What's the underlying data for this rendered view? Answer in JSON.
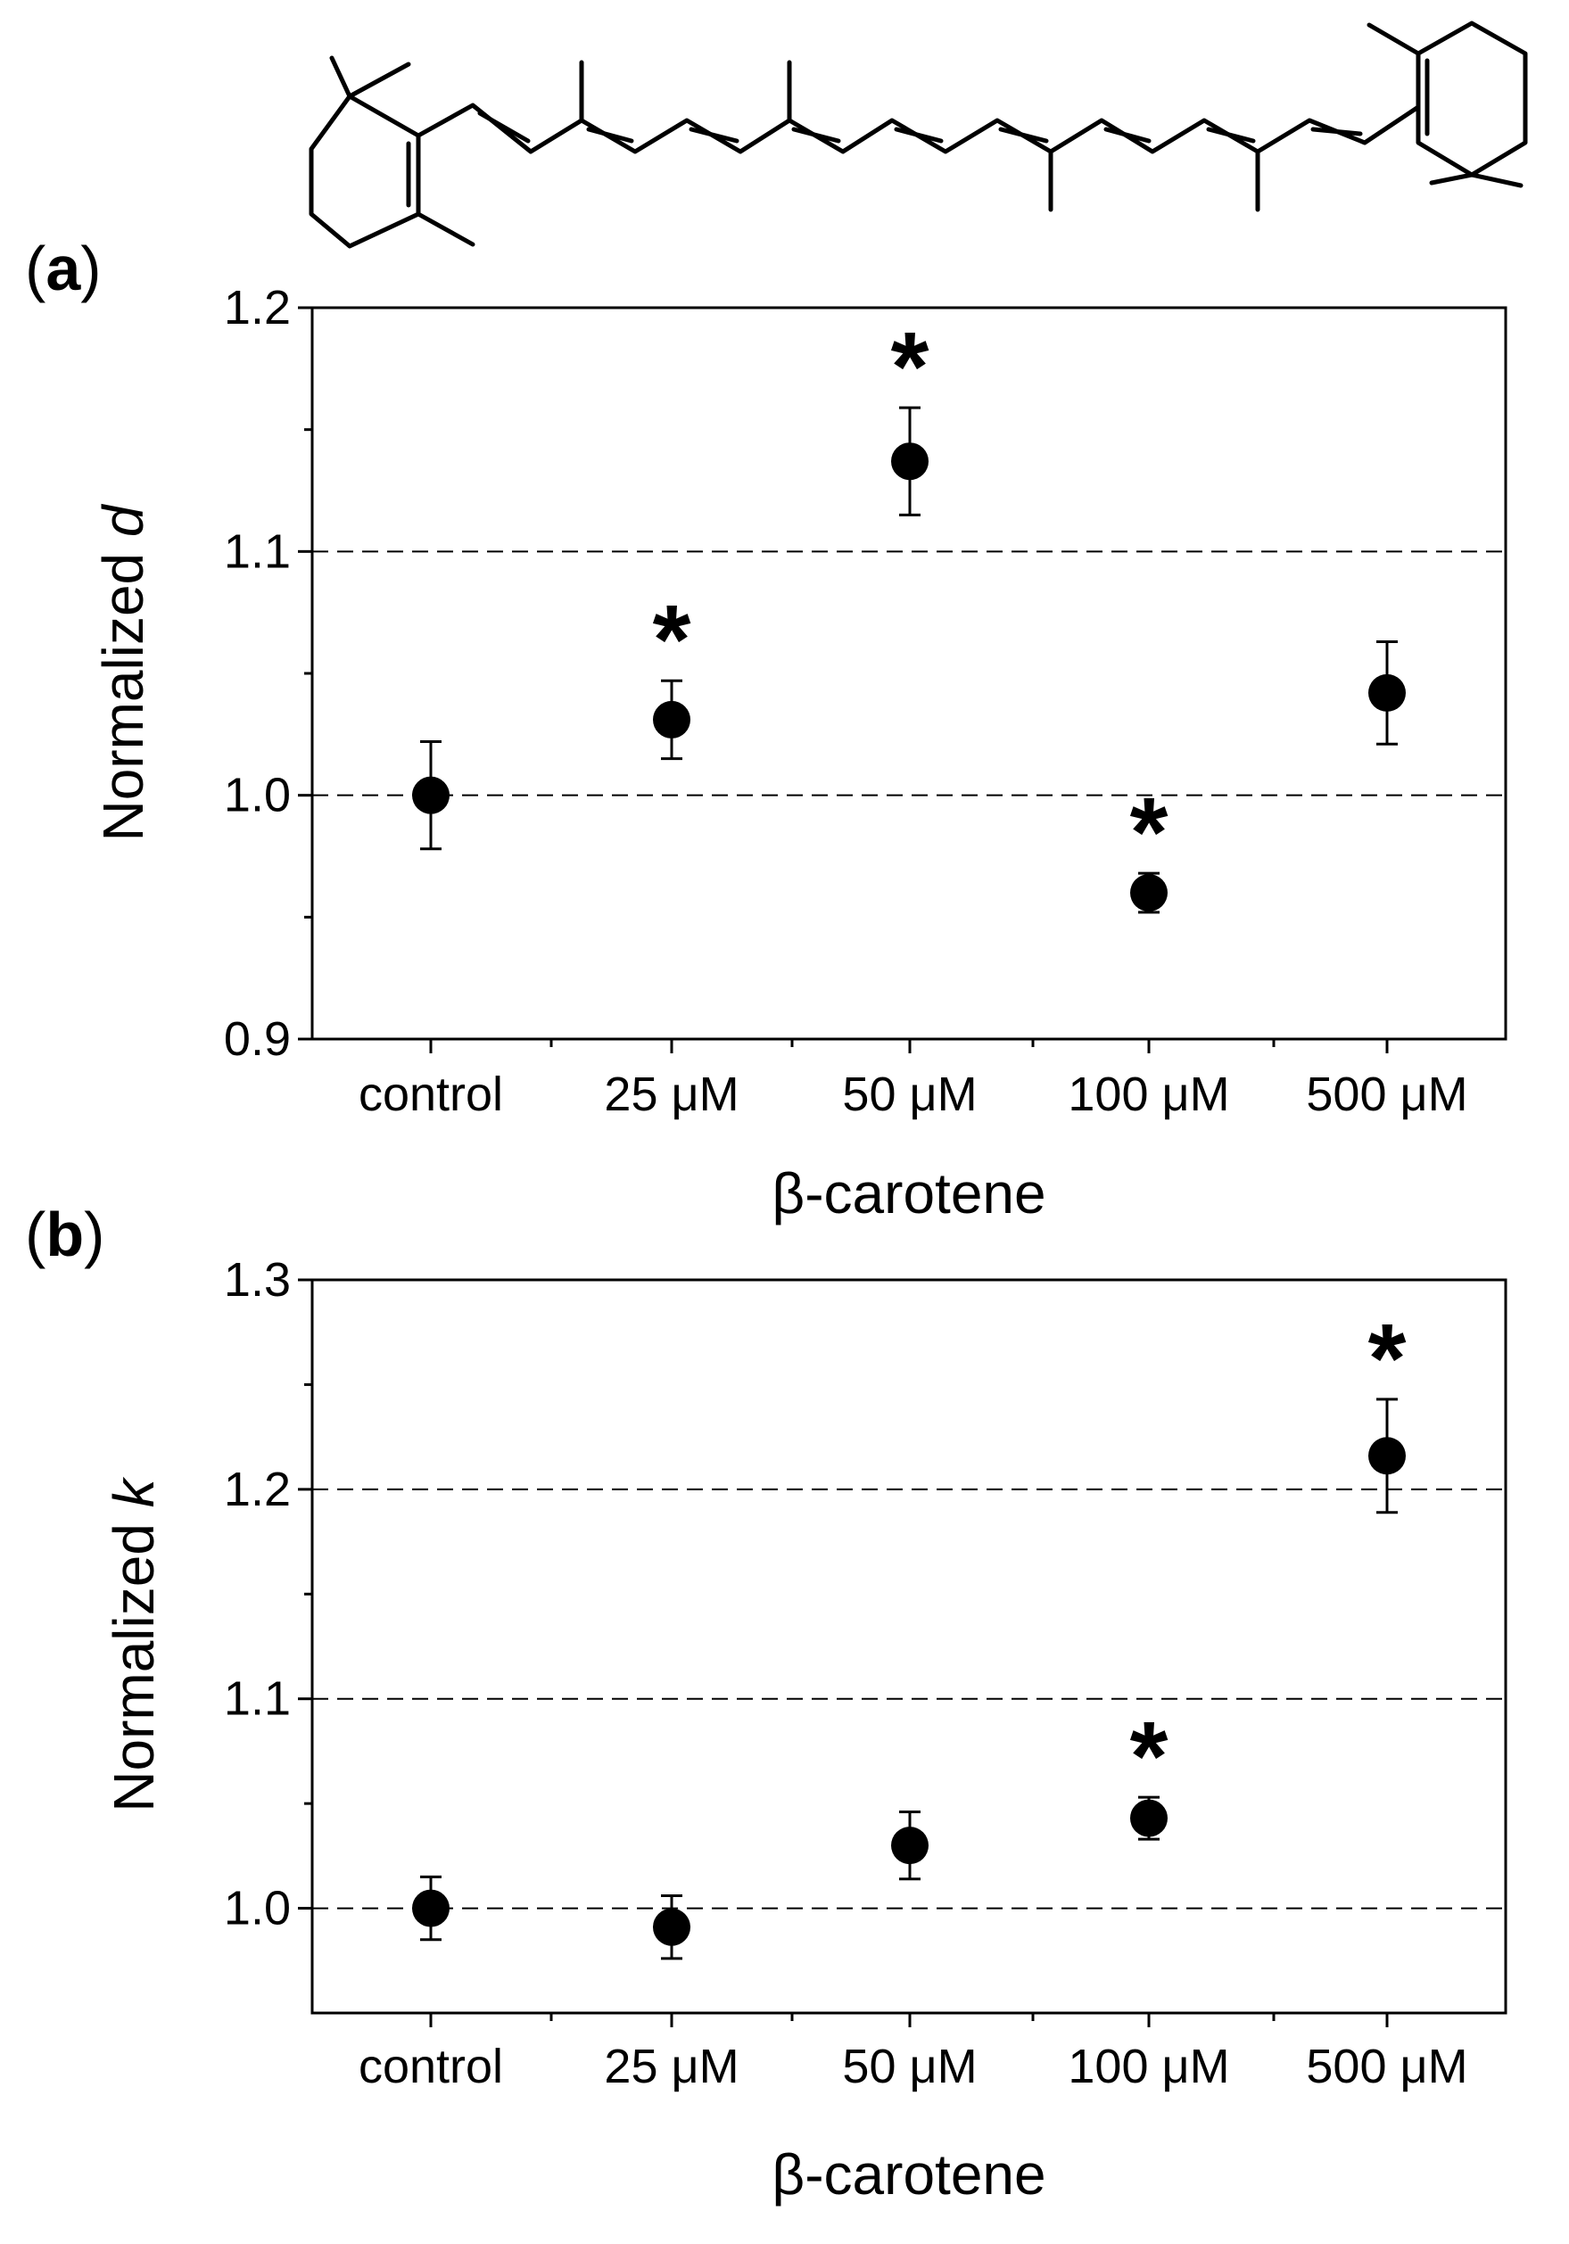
{
  "figure": {
    "molecule_name": "β-carotene",
    "panels": [
      {
        "letter": "a",
        "paren_open": "(",
        "paren_close": ")"
      },
      {
        "letter": "b",
        "paren_open": "(",
        "paren_close": ")"
      }
    ]
  },
  "chart_data": [
    {
      "type": "scatter",
      "panel": "a",
      "title": "",
      "xlabel": "β-carotene",
      "ylabel_prefix": "Normalized ",
      "ylabel_var": "d",
      "categories": [
        "control",
        "25 μM",
        "50 μM",
        "100 μM",
        "500 μM"
      ],
      "values": [
        1.0,
        1.031,
        1.137,
        0.96,
        1.042
      ],
      "errors": [
        0.022,
        0.016,
        0.022,
        0.008,
        0.021
      ],
      "significant": [
        false,
        true,
        true,
        true,
        false
      ],
      "significance_marker": "*",
      "ylim": [
        0.9,
        1.2
      ],
      "yticks": [
        0.9,
        1.0,
        1.1,
        1.2
      ],
      "ytick_labels": [
        "0.9",
        "1.0",
        "1.1",
        "1.2"
      ],
      "gridlines": [
        1.0,
        1.1
      ],
      "grid_style": "dashed"
    },
    {
      "type": "scatter",
      "panel": "b",
      "title": "",
      "xlabel": "β-carotene",
      "ylabel_prefix": "Normalized ",
      "ylabel_var": "k",
      "categories": [
        "control",
        "25 μM",
        "50 μM",
        "100 μM",
        "500 μM"
      ],
      "values": [
        1.0,
        0.991,
        1.03,
        1.043,
        1.216
      ],
      "errors": [
        0.015,
        0.015,
        0.016,
        0.01,
        0.027
      ],
      "significant": [
        false,
        false,
        false,
        true,
        true
      ],
      "significance_marker": "*",
      "ylim": [
        0.95,
        1.3
      ],
      "yticks": [
        1.0,
        1.1,
        1.2,
        1.3
      ],
      "ytick_labels": [
        "1.0",
        "1.1",
        "1.2",
        "1.3"
      ],
      "gridlines": [
        1.0,
        1.1,
        1.2
      ],
      "grid_style": "dashed"
    }
  ]
}
